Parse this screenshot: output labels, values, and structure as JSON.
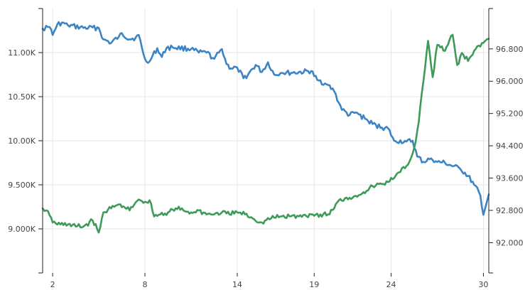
{
  "chart_data": {
    "type": "line",
    "title": "",
    "xlabel": "",
    "ylabel_left": "",
    "ylabel_right": "",
    "grid": true,
    "legend": "none",
    "x_ticks": [
      "2",
      "8",
      "14",
      "19",
      "24",
      "30"
    ],
    "x_tick_values": [
      2,
      8,
      14,
      19,
      24,
      30
    ],
    "xlim": [
      1.35,
      30.35
    ],
    "y_left": {
      "ticks": [
        "9.000K",
        "9.500K",
        "10.00K",
        "10.50K",
        "11.00K"
      ],
      "tick_values": [
        9000,
        9500,
        10000,
        10500,
        11000
      ],
      "ylim": [
        8500,
        11500
      ]
    },
    "y_right": {
      "ticks": [
        "92.000",
        "92.800",
        "93.600",
        "94.400",
        "95.200",
        "96.000",
        "96.800"
      ],
      "tick_values": [
        92000,
        92800,
        93600,
        94400,
        95200,
        96000,
        96800
      ],
      "ylim": [
        91250,
        97800
      ]
    },
    "series": [
      {
        "axis": "left",
        "color": "#3c84c4",
        "x": [
          1.35,
          1.8,
          2.0,
          2.3,
          2.7,
          3.0,
          4.0,
          5.0,
          5.3,
          5.8,
          6.3,
          6.5,
          7.0,
          7.4,
          7.6,
          8.0,
          8.3,
          8.8,
          9.1,
          9.4,
          9.8,
          11.0,
          11.5,
          12.0,
          12.5,
          13.0,
          13.3,
          13.6,
          14.0,
          14.4,
          14.7,
          15.2,
          15.6,
          16.0,
          16.4,
          16.9,
          17.6,
          18.8,
          19.2,
          19.8,
          20.3,
          20.8,
          21.3,
          21.7,
          22.3,
          22.8,
          23.4,
          23.8,
          24.2,
          25.0,
          25.4,
          25.7,
          26.1,
          26.6,
          27.0,
          27.5,
          28.0,
          28.5,
          29.0,
          29.4,
          29.8,
          30.0,
          30.35
        ],
        "values": [
          11270,
          11290,
          11200,
          11320,
          11340,
          11310,
          11280,
          11280,
          11150,
          11110,
          11180,
          11220,
          11150,
          11170,
          11200,
          10930,
          10900,
          11050,
          10950,
          11050,
          11060,
          11040,
          11000,
          11000,
          10930,
          11040,
          10870,
          10820,
          10830,
          10710,
          10750,
          10860,
          10780,
          10890,
          10750,
          10770,
          10770,
          10790,
          10690,
          10640,
          10560,
          10350,
          10290,
          10320,
          10250,
          10190,
          10150,
          10140,
          10000,
          9990,
          10000,
          9820,
          9760,
          9800,
          9760,
          9750,
          9710,
          9680,
          9600,
          9500,
          9380,
          9160,
          9390
        ]
      },
      {
        "axis": "right",
        "color": "#3e9a59",
        "x": [
          1.35,
          1.6,
          2.0,
          2.5,
          3.0,
          3.5,
          4.0,
          4.6,
          5.0,
          5.3,
          5.8,
          6.3,
          6.6,
          7.0,
          7.4,
          7.7,
          8.1,
          8.3,
          8.6,
          9.0,
          9.5,
          10.0,
          10.5,
          11.0,
          11.5,
          12.0,
          12.5,
          13.0,
          13.5,
          14.0,
          14.5,
          15.0,
          15.6,
          16.2,
          16.8,
          17.4,
          18.0,
          18.8,
          19.4,
          20.0,
          20.5,
          21.0,
          21.6,
          22.2,
          22.8,
          23.4,
          23.8,
          24.2,
          24.6,
          25.0,
          25.3,
          25.6,
          25.8,
          26.1,
          26.4,
          26.7,
          27.0,
          27.5,
          28.0,
          28.3,
          28.6,
          29.0,
          29.5,
          30.0,
          30.35
        ],
        "values": [
          92850,
          92800,
          92500,
          92450,
          92450,
          92400,
          92400,
          92550,
          92250,
          92750,
          92850,
          92950,
          92900,
          92800,
          93000,
          93050,
          93000,
          93050,
          92650,
          92700,
          92750,
          92850,
          92800,
          92750,
          92800,
          92700,
          92700,
          92750,
          92700,
          92750,
          92700,
          92600,
          92500,
          92600,
          92650,
          92650,
          92650,
          92700,
          92700,
          92700,
          93000,
          93100,
          93150,
          93250,
          93400,
          93450,
          93500,
          93600,
          93750,
          93900,
          94100,
          94500,
          95000,
          96000,
          97000,
          96100,
          96900,
          96750,
          97150,
          96400,
          96700,
          96500,
          96800,
          96950,
          97050
        ]
      }
    ]
  }
}
